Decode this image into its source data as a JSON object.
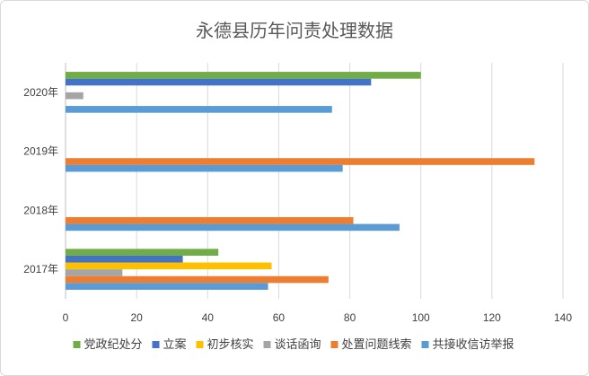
{
  "chart_data": {
    "type": "bar",
    "orientation": "horizontal",
    "title": "永德县历年问责处理数据",
    "categories": [
      "2017年",
      "2018年",
      "2019年",
      "2020年"
    ],
    "xlim": [
      0,
      140
    ],
    "xticks": [
      "0",
      "20",
      "40",
      "60",
      "80",
      "100",
      "120",
      "140"
    ],
    "grid": true,
    "legend_position": "bottom",
    "series": [
      {
        "name": "党政纪处分",
        "color": "#70ad47",
        "values": [
          43,
          null,
          null,
          100
        ]
      },
      {
        "name": "立案",
        "color": "#4472c4",
        "values": [
          33,
          null,
          null,
          86
        ]
      },
      {
        "name": "初步核实",
        "color": "#ffc000",
        "values": [
          58,
          null,
          null,
          null
        ]
      },
      {
        "name": "谈话函询",
        "color": "#a5a5a5",
        "values": [
          16,
          null,
          null,
          5
        ]
      },
      {
        "name": "处置问题线索",
        "color": "#ed7d31",
        "values": [
          74,
          81,
          132,
          null
        ]
      },
      {
        "name": "共接收信访举报",
        "color": "#5b9bd5",
        "values": [
          57,
          94,
          78,
          75
        ]
      }
    ]
  }
}
